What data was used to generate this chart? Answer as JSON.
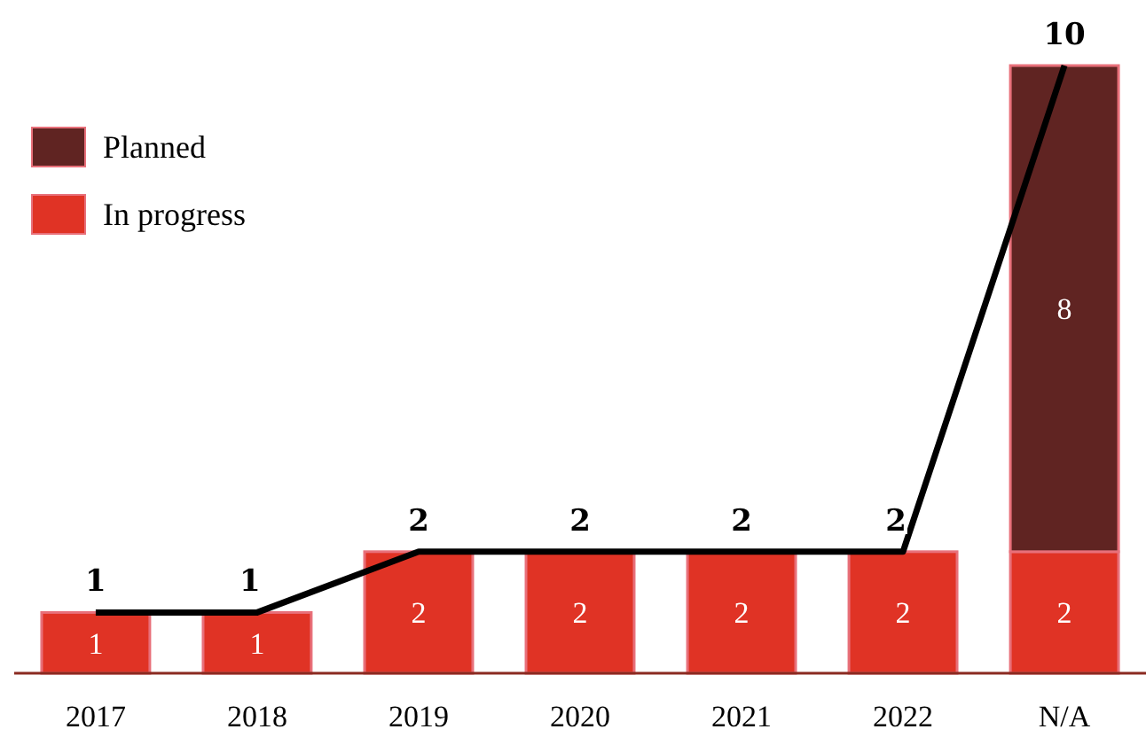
{
  "chart_data": {
    "type": "bar",
    "stacked": true,
    "data_labels": true,
    "legend": "left",
    "categories": [
      "2017",
      "2018",
      "2019",
      "2020",
      "2021",
      "2022",
      "N/A"
    ],
    "series": [
      {
        "name": "In progress",
        "color": "#e03325",
        "values": [
          1,
          1,
          2,
          2,
          2,
          2,
          2
        ]
      },
      {
        "name": "Planned",
        "color": "#602422",
        "values": [
          null,
          null,
          null,
          null,
          null,
          null,
          8
        ]
      },
      {
        "type": "line",
        "color": "#000000",
        "values": [
          1,
          1,
          2,
          2,
          2,
          2,
          10
        ]
      }
    ]
  }
}
